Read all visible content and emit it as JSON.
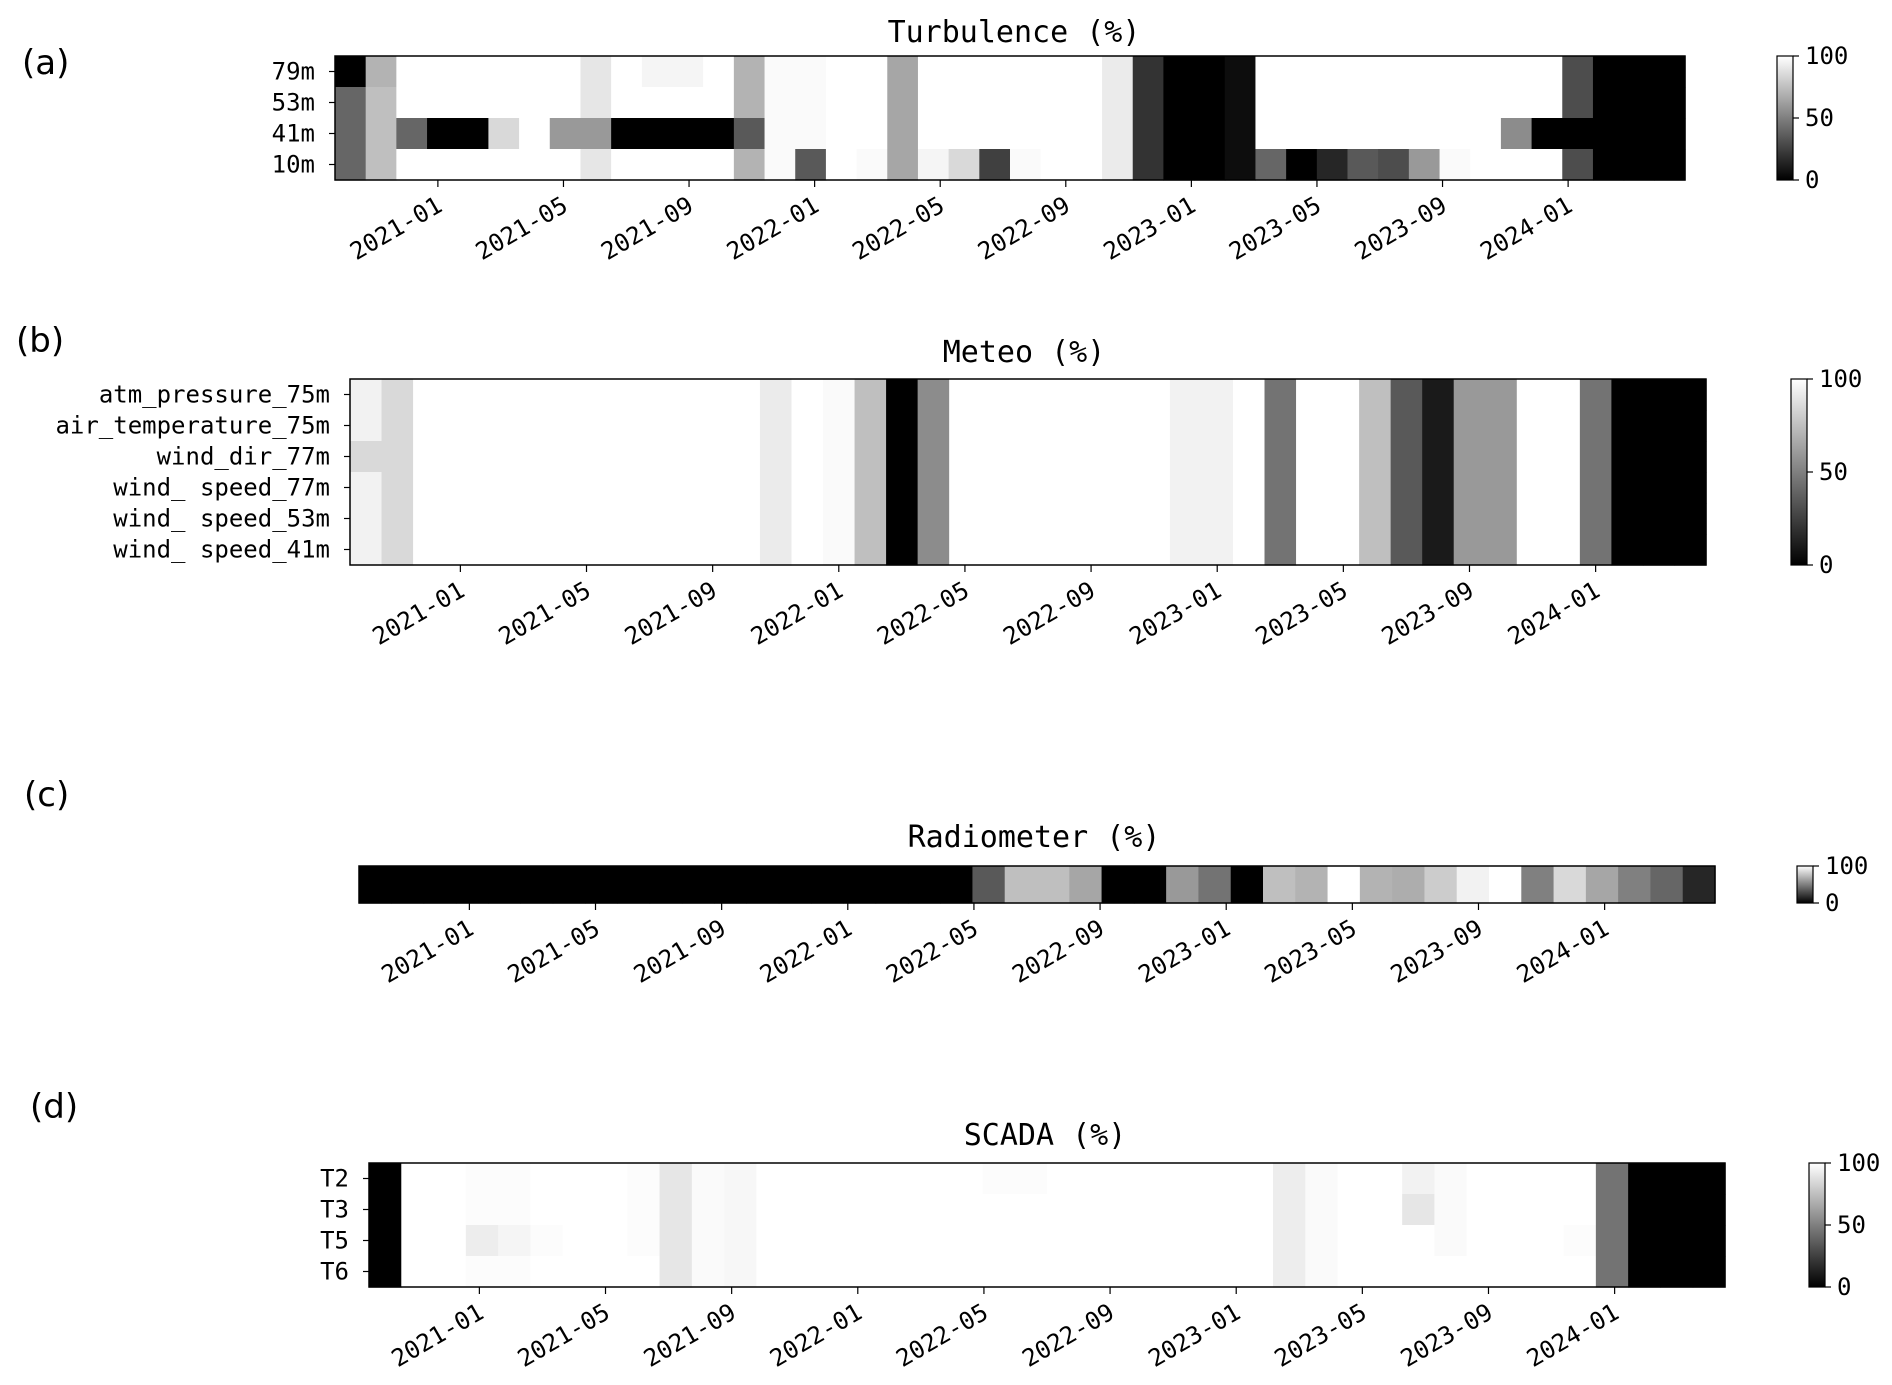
{
  "figure": {
    "panels": [
      {
        "id": "a",
        "label": "(a)"
      },
      {
        "id": "b",
        "label": "(b)"
      },
      {
        "id": "c",
        "label": "(c)"
      },
      {
        "id": "d",
        "label": "(d)"
      }
    ]
  },
  "chart_data": [
    {
      "type": "heatmap",
      "panel": "(a)",
      "title": "Turbulence (%)",
      "x_start": "2020-10",
      "x_tick_labels": [
        "2021-01",
        "2021-05",
        "2021-09",
        "2022-01",
        "2022-05",
        "2022-09",
        "2023-01",
        "2023-05",
        "2023-09",
        "2024-01"
      ],
      "rows": [
        "79m",
        "53m",
        "41m",
        "10m"
      ],
      "values": [
        [
          0,
          70,
          100,
          100,
          100,
          100,
          100,
          100,
          90,
          100,
          96,
          96,
          100,
          70,
          98,
          98,
          100,
          100,
          65,
          100,
          100,
          100,
          100,
          100,
          100,
          92,
          20,
          0,
          0,
          5,
          100,
          100,
          100,
          100,
          100,
          100,
          100,
          100,
          100,
          100,
          30,
          0,
          0,
          0
        ],
        [
          40,
          75,
          100,
          100,
          100,
          100,
          100,
          100,
          90,
          100,
          100,
          100,
          100,
          70,
          98,
          98,
          100,
          100,
          65,
          100,
          100,
          100,
          100,
          100,
          100,
          92,
          20,
          0,
          0,
          5,
          100,
          100,
          100,
          100,
          100,
          100,
          100,
          100,
          100,
          100,
          30,
          0,
          0,
          0
        ],
        [
          40,
          75,
          40,
          0,
          0,
          85,
          100,
          60,
          60,
          0,
          0,
          0,
          0,
          35,
          98,
          98,
          100,
          100,
          65,
          100,
          100,
          100,
          100,
          100,
          100,
          92,
          20,
          0,
          0,
          5,
          100,
          100,
          100,
          100,
          100,
          100,
          100,
          100,
          55,
          0,
          0,
          0,
          0,
          0
        ],
        [
          40,
          75,
          100,
          100,
          100,
          100,
          100,
          100,
          90,
          100,
          100,
          100,
          100,
          70,
          98,
          35,
          100,
          98,
          65,
          96,
          85,
          25,
          98,
          100,
          100,
          92,
          20,
          0,
          0,
          5,
          40,
          0,
          15,
          35,
          30,
          60,
          98,
          100,
          100,
          100,
          30,
          0,
          0,
          0
        ]
      ],
      "colorbar": {
        "min": 0,
        "max": 100,
        "ticks": [
          "100",
          "50",
          "0"
        ]
      },
      "colormap": "gray"
    },
    {
      "type": "heatmap",
      "panel": "(b)",
      "title": "Meteo (%)",
      "x_start": "2020-10",
      "x_tick_labels": [
        "2021-01",
        "2021-05",
        "2021-09",
        "2022-01",
        "2022-05",
        "2022-09",
        "2023-01",
        "2023-05",
        "2023-09",
        "2024-01"
      ],
      "rows": [
        "atm_pressure_75m",
        "air_temperature_75m",
        "wind_dir_77m",
        "wind_ speed_77m",
        "wind_ speed_53m",
        "wind_ speed_41m"
      ],
      "values": [
        [
          95,
          85,
          100,
          100,
          100,
          100,
          100,
          100,
          100,
          100,
          100,
          100,
          100,
          92,
          100,
          98,
          75,
          0,
          55,
          100,
          100,
          100,
          100,
          100,
          100,
          100,
          95,
          95,
          100,
          45,
          100,
          100,
          75,
          35,
          10,
          60,
          60,
          100,
          100,
          45,
          0,
          0,
          0
        ],
        [
          95,
          85,
          100,
          100,
          100,
          100,
          100,
          100,
          100,
          100,
          100,
          100,
          100,
          92,
          100,
          98,
          75,
          0,
          55,
          100,
          100,
          100,
          100,
          100,
          100,
          100,
          95,
          95,
          100,
          45,
          100,
          100,
          75,
          35,
          10,
          60,
          60,
          100,
          100,
          45,
          0,
          0,
          0
        ],
        [
          85,
          85,
          100,
          100,
          100,
          100,
          100,
          100,
          100,
          100,
          100,
          100,
          100,
          92,
          100,
          98,
          75,
          0,
          55,
          100,
          100,
          100,
          100,
          100,
          100,
          100,
          95,
          95,
          100,
          45,
          100,
          100,
          75,
          35,
          10,
          60,
          60,
          100,
          100,
          45,
          0,
          0,
          0
        ],
        [
          95,
          85,
          100,
          100,
          100,
          100,
          100,
          100,
          100,
          100,
          100,
          100,
          100,
          92,
          100,
          98,
          75,
          0,
          55,
          100,
          100,
          100,
          100,
          100,
          100,
          100,
          95,
          95,
          100,
          45,
          100,
          100,
          75,
          35,
          10,
          60,
          60,
          100,
          100,
          45,
          0,
          0,
          0
        ],
        [
          95,
          85,
          100,
          100,
          100,
          100,
          100,
          100,
          100,
          100,
          100,
          100,
          100,
          92,
          100,
          98,
          75,
          0,
          55,
          100,
          100,
          100,
          100,
          100,
          100,
          100,
          95,
          95,
          100,
          45,
          100,
          100,
          75,
          35,
          10,
          60,
          60,
          100,
          100,
          45,
          0,
          0,
          0
        ],
        [
          95,
          85,
          100,
          100,
          100,
          100,
          100,
          100,
          100,
          100,
          100,
          100,
          100,
          92,
          100,
          98,
          75,
          0,
          55,
          100,
          100,
          100,
          100,
          100,
          100,
          100,
          95,
          95,
          100,
          45,
          100,
          100,
          75,
          35,
          10,
          60,
          60,
          100,
          100,
          45,
          0,
          0,
          0
        ]
      ],
      "colorbar": {
        "min": 0,
        "max": 100,
        "ticks": [
          "100",
          "50",
          "0"
        ]
      },
      "colormap": "gray"
    },
    {
      "type": "heatmap",
      "panel": "(c)",
      "title": "Radiometer (%)",
      "x_start": "2020-10",
      "x_tick_labels": [
        "2021-01",
        "2021-05",
        "2021-09",
        "2022-01",
        "2022-05",
        "2022-09",
        "2023-01",
        "2023-05",
        "2023-09",
        "2024-01"
      ],
      "rows": [
        ""
      ],
      "values": [
        [
          0,
          0,
          0,
          0,
          0,
          0,
          0,
          0,
          0,
          0,
          0,
          0,
          0,
          0,
          0,
          0,
          0,
          0,
          0,
          35,
          75,
          75,
          65,
          0,
          0,
          60,
          45,
          0,
          75,
          70,
          100,
          70,
          68,
          80,
          95,
          100,
          50,
          85,
          65,
          50,
          40,
          15
        ]
      ],
      "colorbar": {
        "min": 0,
        "max": 100,
        "ticks": [
          "100",
          "0"
        ]
      },
      "colormap": "gray"
    },
    {
      "type": "heatmap",
      "panel": "(d)",
      "title": "SCADA (%)",
      "x_start": "2020-10",
      "x_tick_labels": [
        "2021-01",
        "2021-05",
        "2021-09",
        "2022-01",
        "2022-05",
        "2022-09",
        "2023-01",
        "2023-05",
        "2023-09",
        "2024-01"
      ],
      "rows": [
        "T2",
        "T3",
        "T5",
        "T6"
      ],
      "values": [
        [
          0,
          100,
          100,
          99,
          99,
          100,
          100,
          100,
          99,
          90,
          98,
          97,
          100,
          100,
          100,
          100,
          100,
          100,
          100,
          99,
          99,
          100,
          100,
          100,
          100,
          100,
          100,
          100,
          93,
          98,
          100,
          100,
          95,
          98,
          100,
          100,
          100,
          100,
          45,
          0,
          0,
          0
        ],
        [
          0,
          100,
          100,
          99,
          99,
          100,
          100,
          100,
          99,
          90,
          98,
          97,
          100,
          100,
          100,
          100,
          100,
          100,
          100,
          100,
          100,
          100,
          100,
          100,
          100,
          100,
          100,
          100,
          93,
          98,
          100,
          100,
          90,
          98,
          100,
          100,
          100,
          100,
          45,
          0,
          0,
          0
        ],
        [
          0,
          100,
          100,
          93,
          96,
          99,
          100,
          100,
          99,
          90,
          98,
          97,
          100,
          100,
          100,
          100,
          100,
          100,
          100,
          100,
          100,
          100,
          100,
          100,
          100,
          100,
          100,
          100,
          93,
          98,
          100,
          100,
          100,
          98,
          100,
          100,
          100,
          99,
          45,
          0,
          0,
          0
        ],
        [
          0,
          100,
          100,
          99,
          99,
          100,
          100,
          100,
          100,
          90,
          98,
          97,
          100,
          100,
          100,
          100,
          100,
          100,
          100,
          100,
          100,
          100,
          100,
          100,
          100,
          100,
          100,
          100,
          93,
          98,
          100,
          100,
          100,
          100,
          100,
          100,
          100,
          100,
          45,
          0,
          0,
          0
        ]
      ],
      "colorbar": {
        "min": 0,
        "max": 100,
        "ticks": [
          "100",
          "50",
          "0"
        ]
      },
      "colormap": "gray"
    }
  ]
}
